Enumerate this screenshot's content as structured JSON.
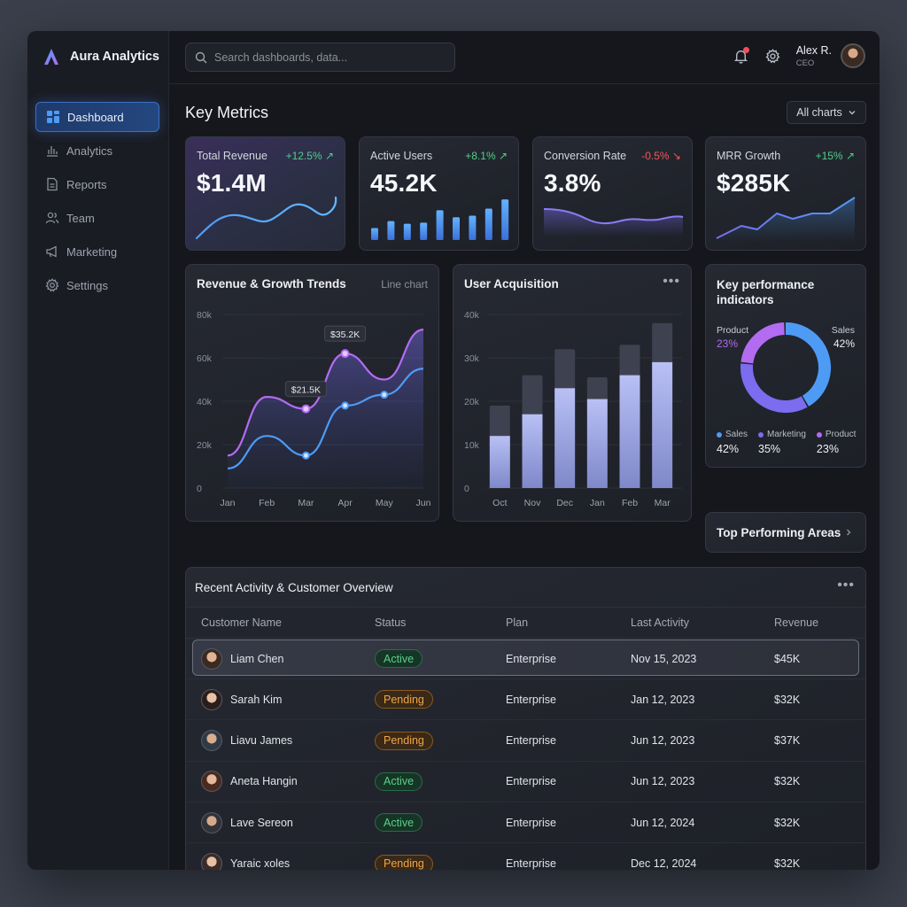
{
  "app": {
    "name": "Aura Analytics"
  },
  "sidebar": {
    "items": [
      {
        "label": "Dashboard",
        "icon": "dashboard-icon",
        "active": true
      },
      {
        "label": "Analytics",
        "icon": "bar-chart-icon"
      },
      {
        "label": "Reports",
        "icon": "document-icon"
      },
      {
        "label": "Team",
        "icon": "users-icon"
      },
      {
        "label": "Marketing",
        "icon": "megaphone-icon"
      },
      {
        "label": "Settings",
        "icon": "gear-icon"
      }
    ]
  },
  "topbar": {
    "search_placeholder": "Search dashboards, data...",
    "user": {
      "name": "Alex R.",
      "role": "CEO"
    }
  },
  "main": {
    "title": "Key Metrics",
    "filter_label": "All charts"
  },
  "kpis": [
    {
      "label": "Total Revenue",
      "value": "$1.4M",
      "delta": "+12.5% ↗",
      "trend": "up"
    },
    {
      "label": "Active Users",
      "value": "45.2K",
      "delta": "+8.1% ↗",
      "trend": "up"
    },
    {
      "label": "Conversion Rate",
      "value": "3.8%",
      "delta": "-0.5% ↘",
      "trend": "down"
    },
    {
      "label": "MRR Growth",
      "value": "$285K",
      "delta": "+15% ↗",
      "trend": "up"
    }
  ],
  "revenue_chart": {
    "title": "Revenue & Growth Trends",
    "subtitle": "Line chart"
  },
  "acquisition_chart": {
    "title": "User Acquisition"
  },
  "kpi_chart": {
    "title_line1": "Key performance",
    "title_line2": "indicators",
    "product_label": "Product",
    "product_pct": "23%",
    "sales_label": "Sales",
    "sales_pct": "42%",
    "legend": [
      {
        "name": "Sales",
        "pct": "42%",
        "color": "#4e9bf5"
      },
      {
        "name": "Marketing",
        "pct": "35%",
        "color": "#7b6cf0"
      },
      {
        "name": "Product",
        "pct": "23%",
        "color": "#b36bf2"
      }
    ]
  },
  "top_areas": {
    "label": "Top Performing Areas"
  },
  "table": {
    "title": "Recent Activity & Customer Overview",
    "headers": [
      "Customer Name",
      "Status",
      "Plan",
      "Last Activity",
      "Revenue"
    ],
    "rows": [
      {
        "name": "Liam Chen",
        "status": "Active",
        "plan": "Enterprise",
        "last": "Nov 15, 2023",
        "revenue": "$45K"
      },
      {
        "name": "Sarah Kim",
        "status": "Pending",
        "plan": "Enterprise",
        "last": "Jan 12, 2023",
        "revenue": "$32K"
      },
      {
        "name": "Liavu James",
        "status": "Pending",
        "plan": "Enterprise",
        "last": "Jun 12, 2023",
        "revenue": "$37K"
      },
      {
        "name": "Aneta Hangin",
        "status": "Active",
        "plan": "Enterprise",
        "last": "Jun 12, 2023",
        "revenue": "$32K"
      },
      {
        "name": "Lave Sereon",
        "status": "Active",
        "plan": "Enterprise",
        "last": "Jun 12, 2024",
        "revenue": "$32K"
      },
      {
        "name": "Yaraic xoles",
        "status": "Pending",
        "plan": "Enterprise",
        "last": "Dec 12, 2024",
        "revenue": "$32K"
      }
    ]
  },
  "chart_data": [
    {
      "type": "bar",
      "title": "Active Users",
      "categories": [
        "1",
        "2",
        "3",
        "4",
        "5",
        "6",
        "7",
        "8",
        "9"
      ],
      "values": [
        22,
        35,
        30,
        32,
        55,
        42,
        45,
        58,
        75
      ],
      "ylim": [
        0,
        80
      ]
    },
    {
      "type": "line",
      "title": "Revenue & Growth Trends",
      "categories": [
        "Jan",
        "Feb",
        "Mar",
        "Apr",
        "May",
        "Jun"
      ],
      "ylim": [
        0,
        80000
      ],
      "yticks": [
        "0",
        "20k",
        "40k",
        "60k",
        "80k"
      ],
      "series": [
        {
          "values": [
            15000,
            42000,
            36500,
            62000,
            50000,
            73000
          ],
          "color": "#b36bf2"
        },
        {
          "values": [
            9000,
            24000,
            15000,
            38000,
            43000,
            55000
          ],
          "color": "#4e9bf5"
        }
      ],
      "annotations": [
        {
          "category": "Mar",
          "text": "$21.5K"
        },
        {
          "category": "Apr",
          "text": "$35.2K"
        }
      ]
    },
    {
      "type": "bar",
      "title": "User Acquisition",
      "categories": [
        "Oct",
        "Nov",
        "Dec",
        "Jan",
        "Feb",
        "Mar"
      ],
      "ylim": [
        0,
        40000
      ],
      "yticks": [
        "0",
        "10k",
        "20k",
        "30k",
        "40k"
      ],
      "series": [
        {
          "values": [
            12000,
            17000,
            23000,
            20500,
            26000,
            29000
          ],
          "color": "#a9b4f0"
        },
        {
          "values": [
            7000,
            9000,
            9000,
            5000,
            7000,
            9000
          ],
          "color": "#3e4250"
        }
      ]
    },
    {
      "type": "pie",
      "title": "Key performance indicators",
      "categories": [
        "Sales",
        "Marketing",
        "Product"
      ],
      "values": [
        42,
        35,
        23
      ]
    }
  ]
}
